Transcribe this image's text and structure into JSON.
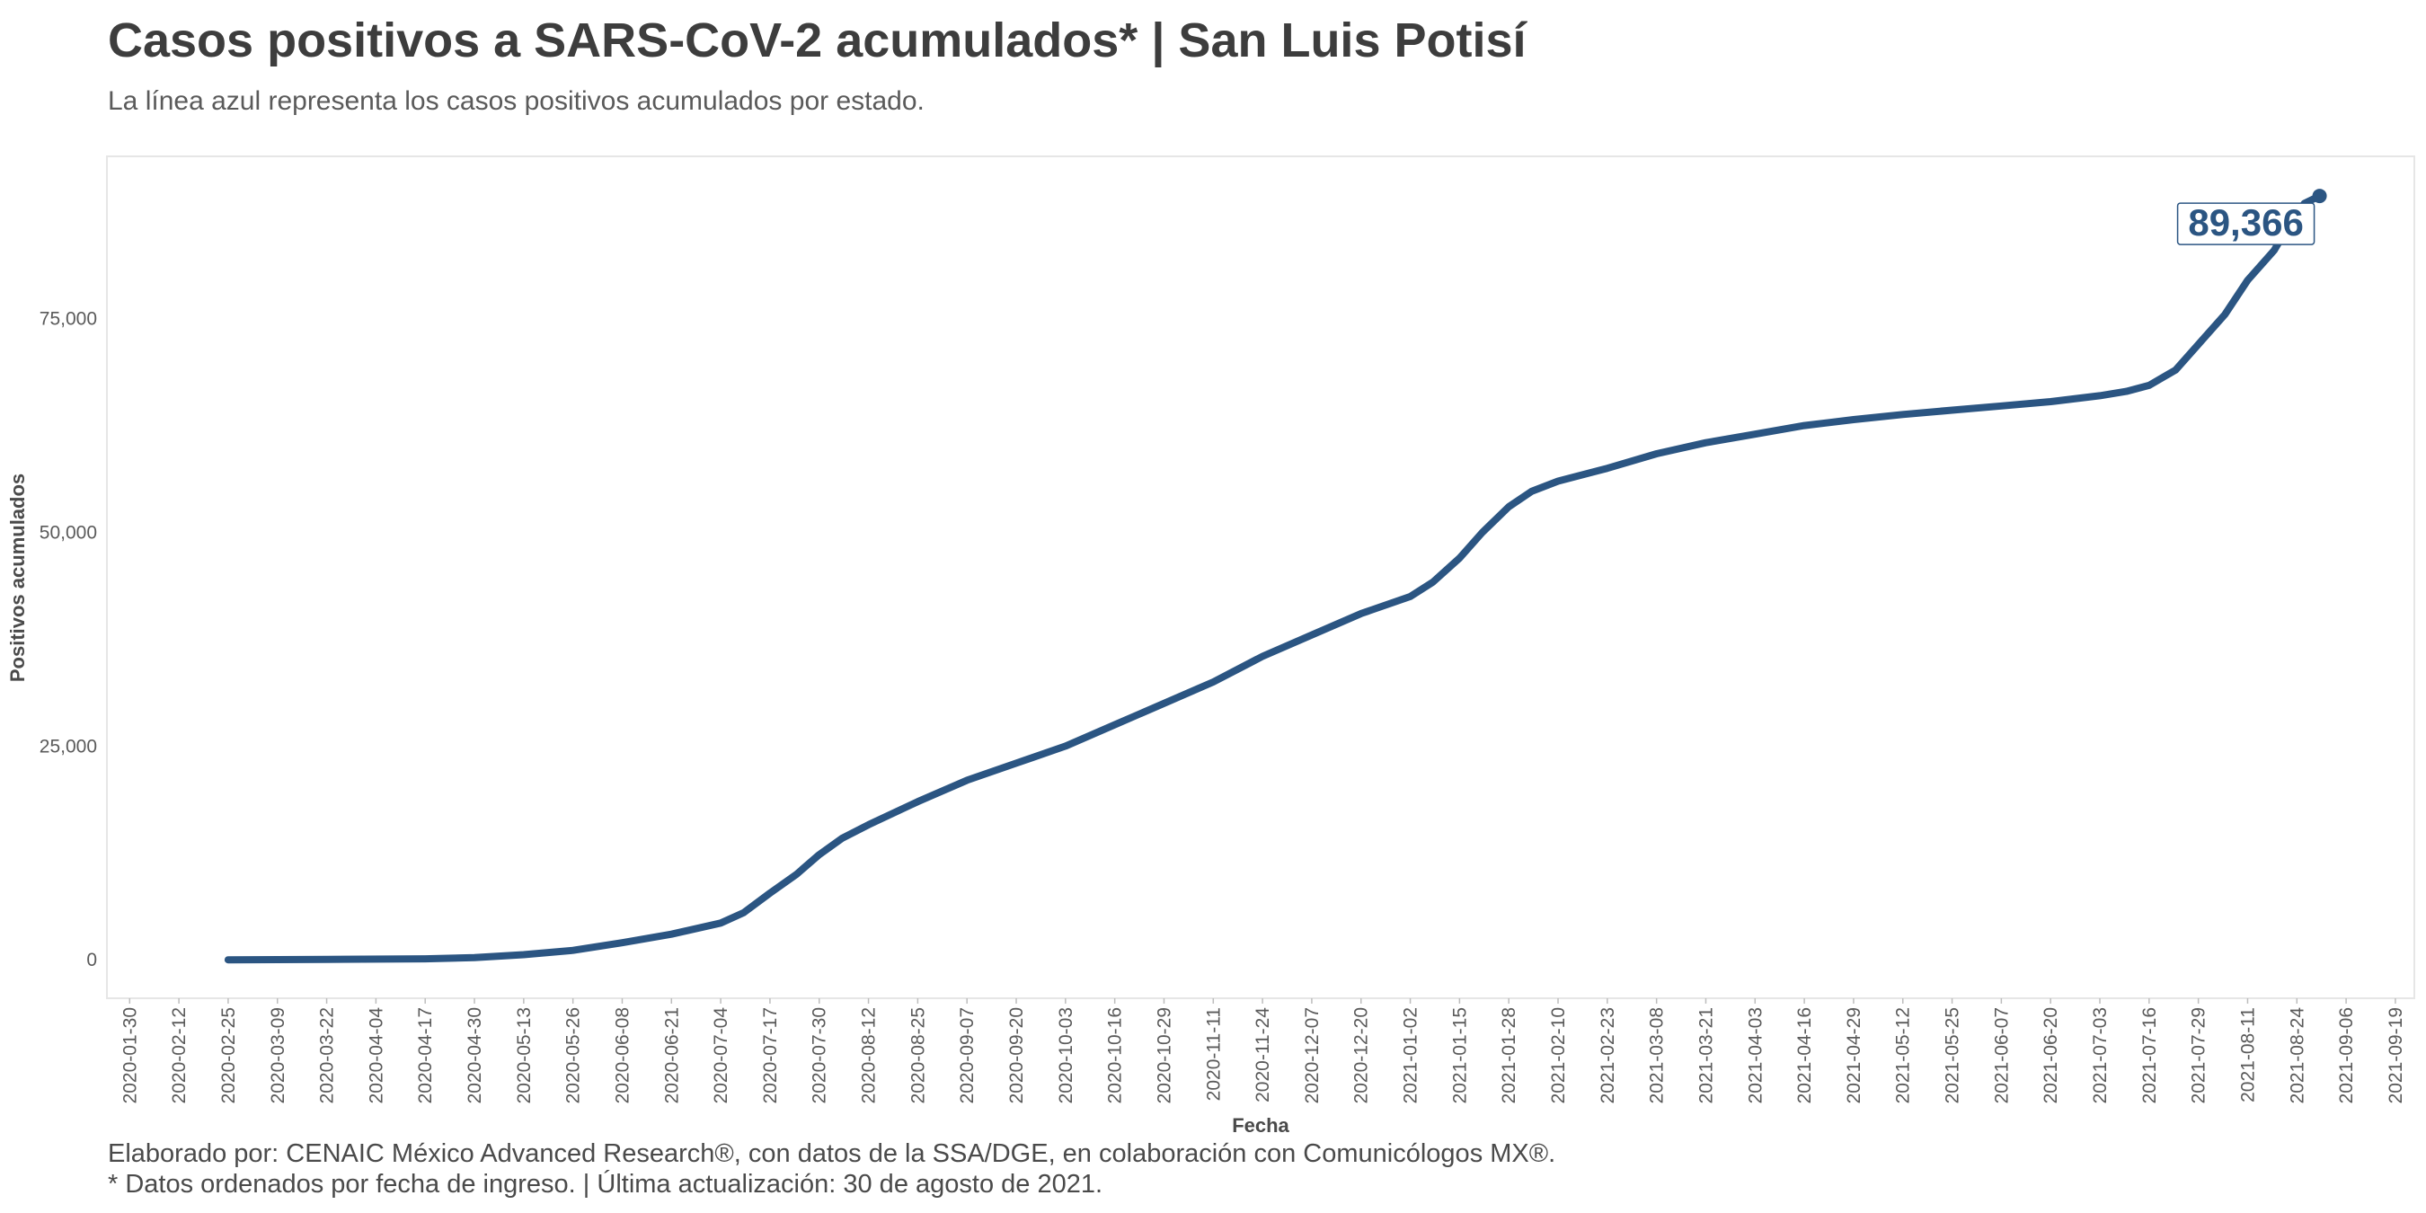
{
  "header": {
    "title": "Casos positivos a SARS-CoV-2 acumulados* | San Luis Potisí",
    "subtitle": "La línea azul representa los casos positivos acumulados por estado."
  },
  "footer": {
    "credit": "Elaborado por: CENAIC México Advanced Research®, con datos de la SSA/DGE, en colaboración con Comunicólogos MX®.",
    "note": "* Datos ordenados por fecha de ingreso. | Última actualización: 30 de agosto de 2021."
  },
  "colors": {
    "line": "#2b5582",
    "frame": "#e6e6e6",
    "end_label_border": "#2b5582"
  },
  "chart_data": {
    "type": "line",
    "title": "Casos positivos a SARS-CoV-2 acumulados* | San Luis Potisí",
    "xlabel": "Fecha",
    "ylabel": "Positivos acumulados",
    "xlim": [
      "2020-01-24",
      "2021-09-24"
    ],
    "ylim": [
      -4500,
      94000
    ],
    "x_ticks": [
      "2020-01-30",
      "2020-02-12",
      "2020-02-25",
      "2020-03-09",
      "2020-03-22",
      "2020-04-04",
      "2020-04-17",
      "2020-04-30",
      "2020-05-13",
      "2020-05-26",
      "2020-06-08",
      "2020-06-21",
      "2020-07-04",
      "2020-07-17",
      "2020-07-30",
      "2020-08-12",
      "2020-08-25",
      "2020-09-07",
      "2020-09-20",
      "2020-10-03",
      "2020-10-16",
      "2020-10-29",
      "2020-11-11",
      "2020-11-24",
      "2020-12-07",
      "2020-12-20",
      "2021-01-02",
      "2021-01-15",
      "2021-01-28",
      "2021-02-10",
      "2021-02-23",
      "2021-03-08",
      "2021-03-21",
      "2021-04-03",
      "2021-04-16",
      "2021-04-29",
      "2021-05-12",
      "2021-05-25",
      "2021-06-07",
      "2021-06-20",
      "2021-07-03",
      "2021-07-16",
      "2021-07-29",
      "2021-08-11",
      "2021-08-24",
      "2021-09-06",
      "2021-09-19"
    ],
    "y_ticks": [
      {
        "value": 0,
        "label": "0"
      },
      {
        "value": 25000,
        "label": "25,000"
      },
      {
        "value": 50000,
        "label": "50,000"
      },
      {
        "value": 75000,
        "label": "75,000"
      }
    ],
    "grid": false,
    "legend": "none",
    "series": [
      {
        "x": [
          "2020-02-25",
          "2020-03-22",
          "2020-04-17",
          "2020-04-30",
          "2020-05-13",
          "2020-05-26",
          "2020-06-08",
          "2020-06-21",
          "2020-07-04",
          "2020-07-10",
          "2020-07-17",
          "2020-07-24",
          "2020-07-30",
          "2020-08-05",
          "2020-08-12",
          "2020-08-25",
          "2020-09-07",
          "2020-09-20",
          "2020-10-03",
          "2020-10-16",
          "2020-10-29",
          "2020-11-11",
          "2020-11-24",
          "2020-12-07",
          "2020-12-20",
          "2021-01-02",
          "2021-01-08",
          "2021-01-15",
          "2021-01-21",
          "2021-01-28",
          "2021-02-03",
          "2021-02-10",
          "2021-02-23",
          "2021-03-08",
          "2021-03-21",
          "2021-04-03",
          "2021-04-16",
          "2021-04-29",
          "2021-05-12",
          "2021-05-25",
          "2021-06-07",
          "2021-06-20",
          "2021-07-03",
          "2021-07-10",
          "2021-07-16",
          "2021-07-23",
          "2021-07-29",
          "2021-08-05",
          "2021-08-11",
          "2021-08-18",
          "2021-08-22",
          "2021-08-26",
          "2021-08-30"
        ],
        "y": [
          0,
          50,
          120,
          250,
          600,
          1100,
          2000,
          3000,
          4300,
          5500,
          7800,
          10000,
          12300,
          14200,
          15800,
          18500,
          21000,
          23000,
          25000,
          27500,
          30000,
          32500,
          35500,
          38000,
          40500,
          42500,
          44200,
          47000,
          50000,
          53000,
          54800,
          56000,
          57500,
          59200,
          60500,
          61500,
          62500,
          63200,
          63800,
          64300,
          64800,
          65300,
          66000,
          66500,
          67200,
          69000,
          72000,
          75500,
          79500,
          83000,
          86000,
          88500,
          89366
        ]
      }
    ],
    "annotations": [
      {
        "text": "89,366",
        "x": "2021-08-30",
        "y": 89366
      }
    ]
  }
}
